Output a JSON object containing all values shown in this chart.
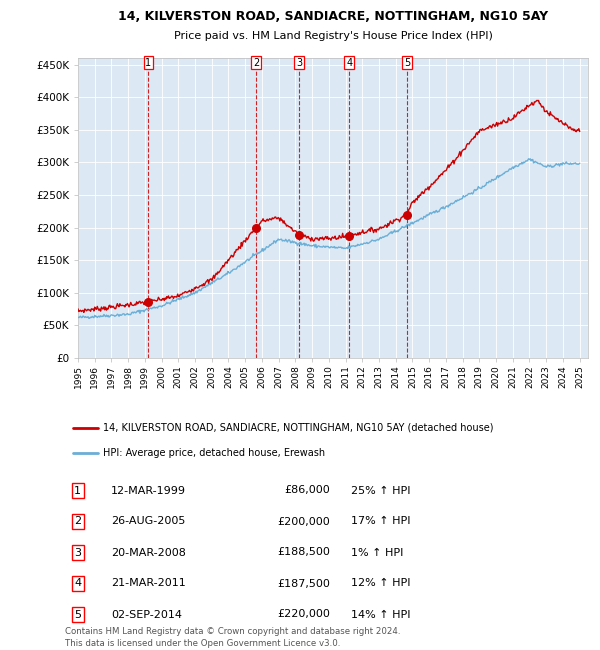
{
  "title1": "14, KILVERSTON ROAD, SANDIACRE, NOTTINGHAM, NG10 5AY",
  "title2": "Price paid vs. HM Land Registry's House Price Index (HPI)",
  "legend_line1": "14, KILVERSTON ROAD, SANDIACRE, NOTTINGHAM, NG10 5AY (detached house)",
  "legend_line2": "HPI: Average price, detached house, Erewash",
  "footer1": "Contains HM Land Registry data © Crown copyright and database right 2024.",
  "footer2": "This data is licensed under the Open Government Licence v3.0.",
  "sales": [
    {
      "num": 1,
      "date": "12-MAR-1999",
      "price": "£86,000",
      "pct": "25%",
      "dir": "↑"
    },
    {
      "num": 2,
      "date": "26-AUG-2005",
      "price": "£200,000",
      "pct": "17%",
      "dir": "↑"
    },
    {
      "num": 3,
      "date": "20-MAR-2008",
      "price": "£188,500",
      "pct": "1%",
      "dir": "↑"
    },
    {
      "num": 4,
      "date": "21-MAR-2011",
      "price": "£187,500",
      "pct": "12%",
      "dir": "↑"
    },
    {
      "num": 5,
      "date": "02-SEP-2014",
      "price": "£220,000",
      "pct": "14%",
      "dir": "↑"
    }
  ],
  "sale_years": [
    1999.21,
    2005.65,
    2008.22,
    2011.22,
    2014.67
  ],
  "sale_prices": [
    86000,
    200000,
    188500,
    187500,
    220000
  ],
  "hpi_color": "#6baed6",
  "price_color": "#cc0000",
  "background_color": "#dce9f5",
  "ylim": [
    0,
    460000
  ],
  "xlim_start": 1995.0,
  "xlim_end": 2025.5,
  "yticks": [
    0,
    50000,
    100000,
    150000,
    200000,
    250000,
    300000,
    350000,
    400000,
    450000
  ],
  "ytick_labels": [
    "£0",
    "£50K",
    "£100K",
    "£150K",
    "£200K",
    "£250K",
    "£300K",
    "£350K",
    "£400K",
    "£450K"
  ],
  "xticks": [
    1995,
    1996,
    1997,
    1998,
    1999,
    2000,
    2001,
    2002,
    2003,
    2004,
    2005,
    2006,
    2007,
    2008,
    2009,
    2010,
    2011,
    2012,
    2013,
    2014,
    2015,
    2016,
    2017,
    2018,
    2019,
    2020,
    2021,
    2022,
    2023,
    2024,
    2025
  ],
  "hpi_anchors_x": [
    1995,
    1998,
    2000,
    2002,
    2004,
    2007,
    2009,
    2011,
    2013,
    2015,
    2017,
    2019,
    2021,
    2022,
    2023,
    2024,
    2025
  ],
  "hpi_anchors_y": [
    62000,
    67000,
    80000,
    100000,
    130000,
    182000,
    172000,
    168000,
    182000,
    207000,
    232000,
    260000,
    292000,
    305000,
    293000,
    298000,
    298000
  ],
  "price_anchors_x": [
    1995,
    1997,
    1999.21,
    2001,
    2003,
    2005.65,
    2006,
    2007,
    2008.22,
    2009,
    2010,
    2011.22,
    2012,
    2013,
    2014.67,
    2015,
    2016,
    2017,
    2018,
    2019,
    2020,
    2021,
    2022,
    2022.5,
    2023,
    2023.5,
    2024,
    2024.5,
    2025
  ],
  "price_anchors_y": [
    72000,
    78000,
    86000,
    95000,
    120000,
    200000,
    210000,
    215000,
    188500,
    183000,
    183000,
    187500,
    193000,
    198000,
    220000,
    238000,
    263000,
    288000,
    318000,
    348000,
    358000,
    368000,
    388000,
    395000,
    378000,
    368000,
    360000,
    350000,
    348000
  ]
}
